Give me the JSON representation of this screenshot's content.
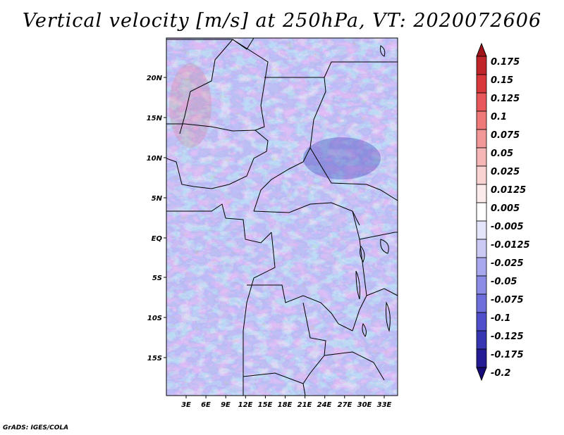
{
  "title": "Vertical velocity [m/s] at 250hPa, VT: 2020072606",
  "footer": "GrADS: IGES/COLA",
  "map": {
    "lat_ticks": [
      "20N",
      "15N",
      "10N",
      "5N",
      "EQ",
      "5S",
      "10S",
      "15S"
    ],
    "lon_ticks": [
      "3E",
      "6E",
      "9E",
      "12E",
      "15E",
      "18E",
      "21E",
      "24E",
      "27E",
      "30E",
      "33E"
    ]
  },
  "colorbar": {
    "labels": [
      "0.175",
      "0.15",
      "0.125",
      "0.1",
      "0.075",
      "0.05",
      "0.025",
      "0.0125",
      "0.005",
      "-0.005",
      "-0.0125",
      "-0.025",
      "-0.05",
      "-0.075",
      "-0.1",
      "-0.125",
      "-0.175",
      "-0.2"
    ],
    "colors": [
      "#a01419",
      "#c0252a",
      "#d8383a",
      "#e8575a",
      "#ef7878",
      "#f29898",
      "#f6b6b6",
      "#f9d2d2",
      "#fcebeb",
      "#ffffff",
      "#e4e4fb",
      "#cacaf5",
      "#a8a8ee",
      "#8c8ce6",
      "#6e6edc",
      "#4f4fcc",
      "#3636b2",
      "#241c94",
      "#160a78"
    ]
  }
}
